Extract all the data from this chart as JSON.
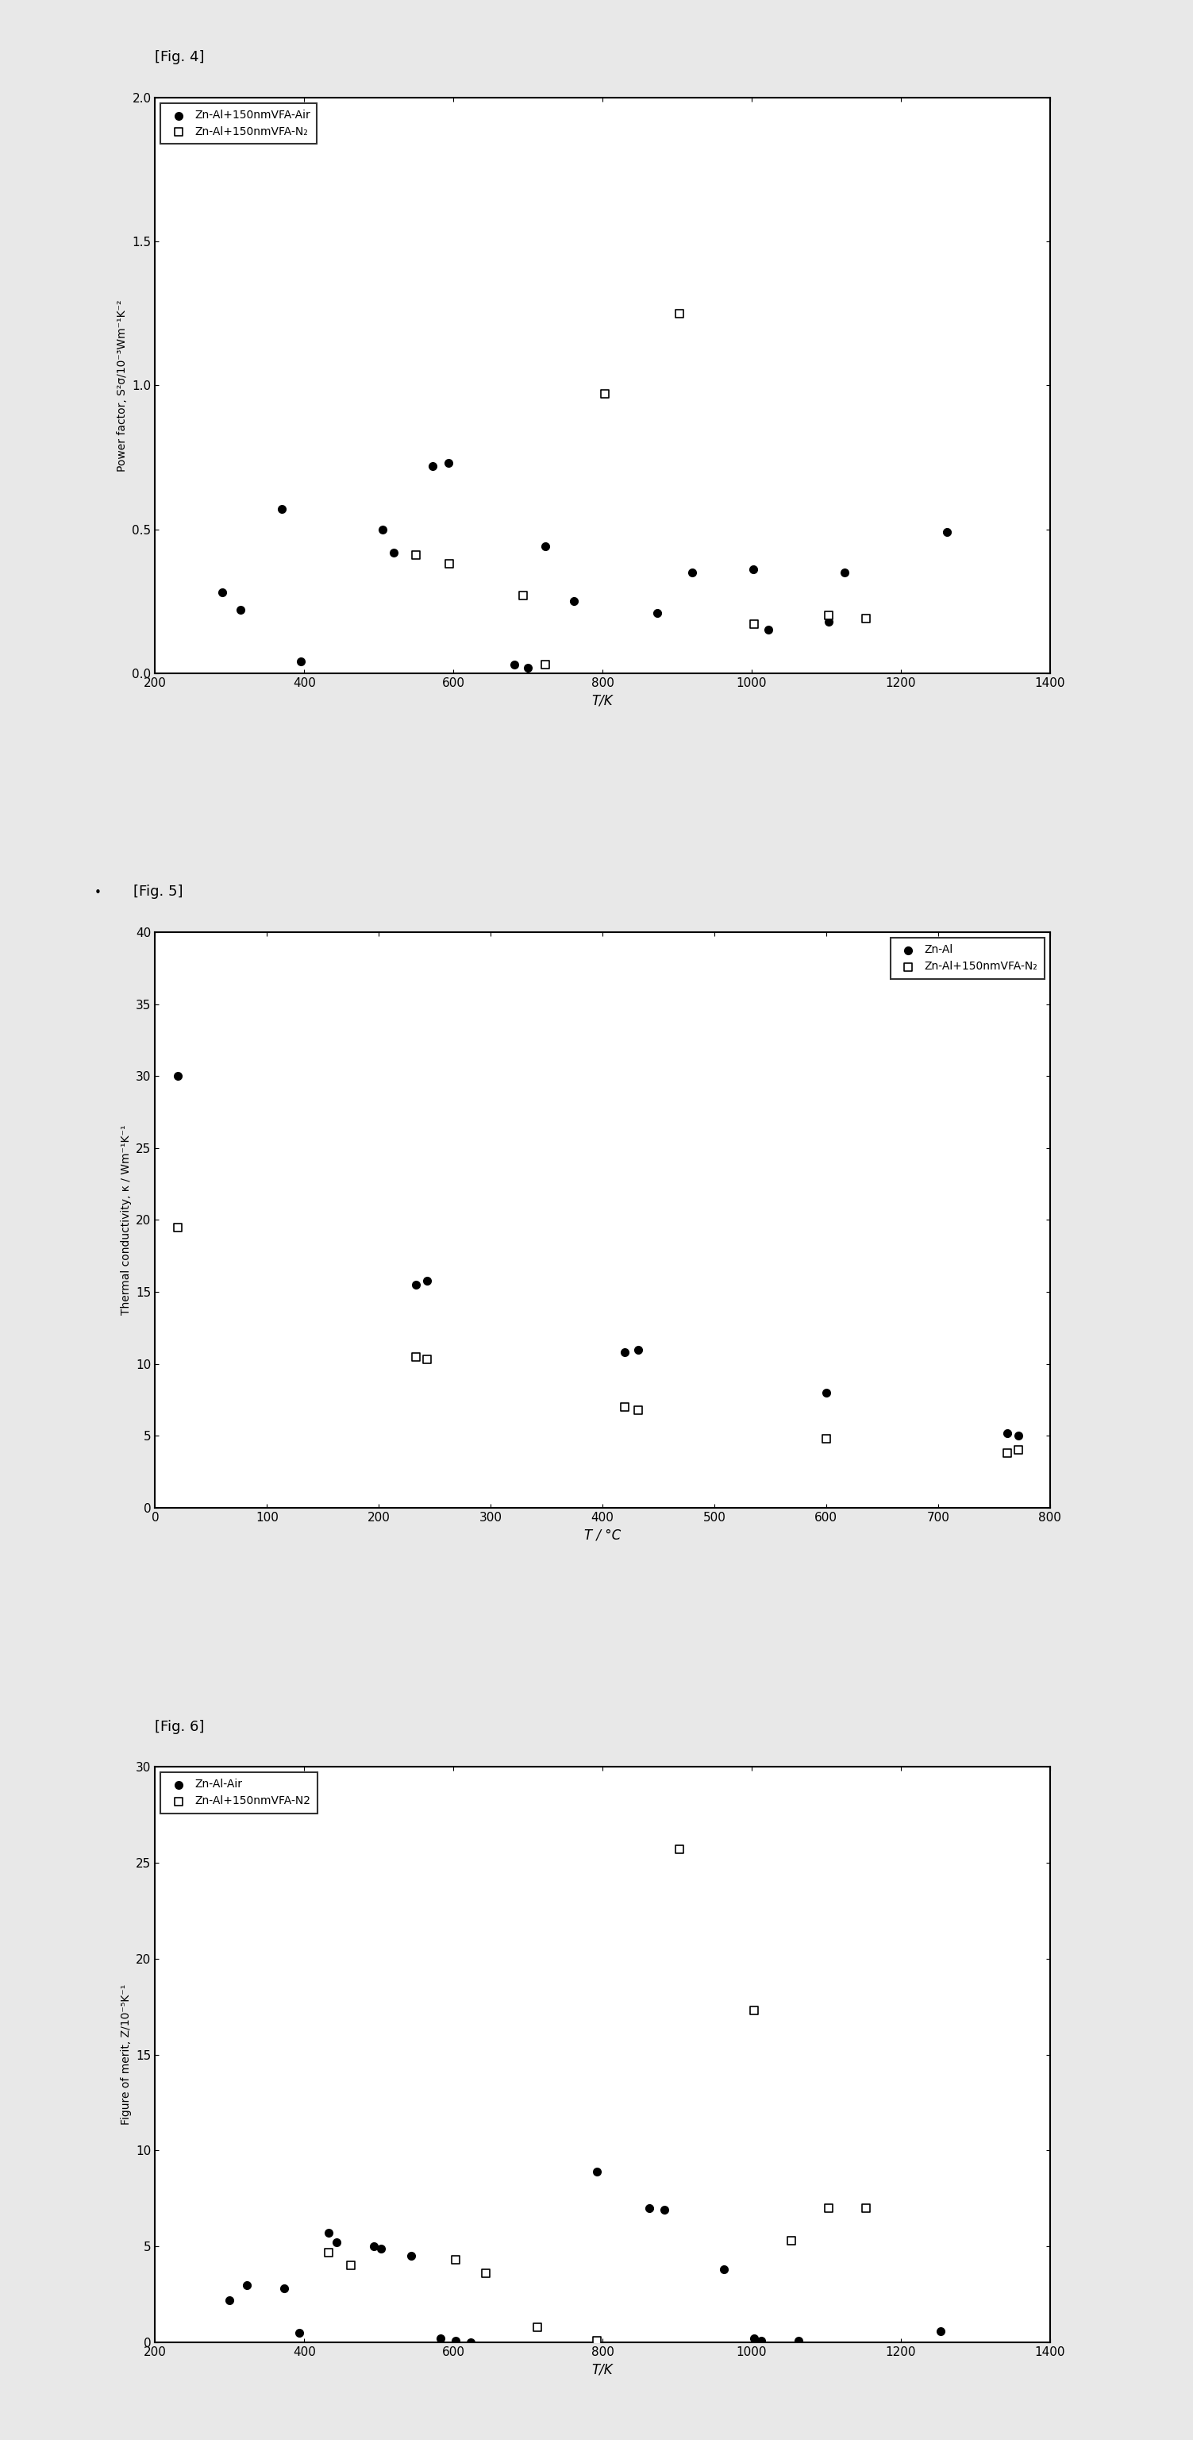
{
  "fig4": {
    "label": "[Fig. 4]",
    "xlabel": "T/K",
    "ylabel": "Power factor, S²σ/10⁻³Wm⁻¹K⁻²",
    "xlim": [
      200,
      1400
    ],
    "ylim": [
      0,
      2.0
    ],
    "xticks": [
      200,
      400,
      600,
      800,
      1000,
      1200,
      1400
    ],
    "yticks": [
      0,
      0.5,
      1.0,
      1.5,
      2.0
    ],
    "series1_label": "Zn-Al+150nmVFA-Air",
    "series1_x": [
      290,
      315,
      370,
      395,
      505,
      520,
      572,
      593,
      682,
      700,
      723,
      762,
      873,
      920,
      1002,
      1023,
      1103,
      1125,
      1262
    ],
    "series1_y": [
      0.28,
      0.22,
      0.57,
      0.04,
      0.5,
      0.42,
      0.72,
      0.73,
      0.03,
      0.02,
      0.44,
      0.25,
      0.21,
      0.35,
      0.36,
      0.15,
      0.18,
      0.35,
      0.49
    ],
    "series2_label": "Zn-Al+150nmVFA-N₂",
    "series2_x": [
      550,
      595,
      693,
      723,
      803,
      903,
      1003,
      1103,
      1153
    ],
    "series2_y": [
      0.41,
      0.38,
      0.27,
      0.03,
      0.97,
      1.25,
      0.17,
      0.2,
      0.19
    ]
  },
  "fig5": {
    "label": "[Fig. 5]",
    "xlabel": "T / °C",
    "ylabel": "Thermal conductivity, κ / Wm⁻¹K⁻¹",
    "xlim": [
      0,
      800
    ],
    "ylim": [
      0,
      40
    ],
    "xticks": [
      0,
      100,
      200,
      300,
      400,
      500,
      600,
      700,
      800
    ],
    "yticks": [
      0,
      5,
      10,
      15,
      20,
      25,
      30,
      35,
      40
    ],
    "series1_label": "Zn-Al",
    "series1_x": [
      20,
      233,
      243,
      420,
      432,
      600,
      762,
      772
    ],
    "series1_y": [
      30.0,
      15.5,
      15.8,
      10.8,
      11.0,
      8.0,
      5.2,
      5.0
    ],
    "series2_label": "Zn-Al+150nmVFA-N₂",
    "series2_x": [
      20,
      233,
      243,
      420,
      432,
      600,
      762,
      772
    ],
    "series2_y": [
      19.5,
      10.5,
      10.3,
      7.0,
      6.8,
      4.8,
      3.8,
      4.0
    ]
  },
  "fig6": {
    "label": "[Fig. 6]",
    "xlabel": "T/K",
    "ylabel": "Figure of merit, Z/10⁻⁵K⁻¹",
    "xlim": [
      200,
      1400
    ],
    "ylim": [
      0,
      30
    ],
    "xticks": [
      200,
      400,
      600,
      800,
      1000,
      1200,
      1400
    ],
    "yticks": [
      0,
      5,
      10,
      15,
      20,
      25,
      30
    ],
    "series1_label": "Zn-Al-Air",
    "series1_x": [
      300,
      323,
      373,
      393,
      433,
      443,
      493,
      503,
      543,
      583,
      603,
      623,
      793,
      863,
      883,
      963,
      1003,
      1013,
      1063,
      1253
    ],
    "series1_y": [
      2.2,
      3.0,
      2.8,
      0.5,
      5.7,
      5.2,
      5.0,
      4.9,
      4.5,
      0.2,
      0.1,
      0.0,
      8.9,
      7.0,
      6.9,
      3.8,
      0.2,
      0.1,
      0.1,
      0.6
    ],
    "series2_label": "Zn-Al+150nmVFA-N2",
    "series2_x": [
      433,
      463,
      603,
      643,
      713,
      793,
      903,
      1003,
      1053,
      1103,
      1153
    ],
    "series2_y": [
      4.7,
      4.0,
      4.3,
      3.6,
      0.8,
      0.1,
      25.7,
      17.3,
      5.3,
      7.0,
      7.0
    ]
  },
  "fig5_label_has_bullet": true,
  "background_color": "#f0f0f0",
  "plot_bg": "#ffffff"
}
